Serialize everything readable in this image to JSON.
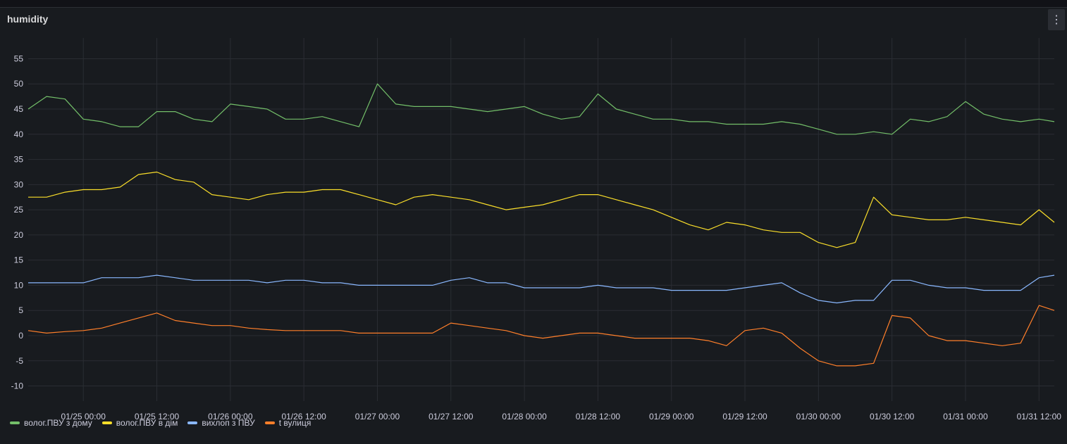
{
  "panel": {
    "title": "humidity",
    "menu_icon": "more-vertical-icon"
  },
  "chart_data": {
    "type": "line",
    "title": "humidity",
    "xlabel": "",
    "ylabel": "",
    "ylim": [
      -13,
      58
    ],
    "xlim": [
      "2025-01-24 15:00",
      "2025-01-31 14:30"
    ],
    "grid": true,
    "legend_position": "bottom-left",
    "y_ticks": [
      -10,
      -5,
      0,
      5,
      10,
      15,
      20,
      25,
      30,
      35,
      40,
      45,
      50,
      55
    ],
    "x_ticks": [
      {
        "t": "2025-01-25 00:00",
        "label": "01/25 00:00"
      },
      {
        "t": "2025-01-25 12:00",
        "label": "01/25 12:00"
      },
      {
        "t": "2025-01-26 00:00",
        "label": "01/26 00:00"
      },
      {
        "t": "2025-01-26 12:00",
        "label": "01/26 12:00"
      },
      {
        "t": "2025-01-27 00:00",
        "label": "01/27 00:00"
      },
      {
        "t": "2025-01-27 12:00",
        "label": "01/27 12:00"
      },
      {
        "t": "2025-01-28 00:00",
        "label": "01/28 00:00"
      },
      {
        "t": "2025-01-28 12:00",
        "label": "01/28 12:00"
      },
      {
        "t": "2025-01-29 00:00",
        "label": "01/29 00:00"
      },
      {
        "t": "2025-01-29 12:00",
        "label": "01/29 12:00"
      },
      {
        "t": "2025-01-30 00:00",
        "label": "01/30 00:00"
      },
      {
        "t": "2025-01-30 12:00",
        "label": "01/30 12:00"
      },
      {
        "t": "2025-01-31 00:00",
        "label": "01/31 00:00"
      },
      {
        "t": "2025-01-31 12:00",
        "label": "01/31 12:00"
      }
    ],
    "x": [
      "2025-01-24 15:00",
      "2025-01-24 18:00",
      "2025-01-24 21:00",
      "2025-01-25 00:00",
      "2025-01-25 03:00",
      "2025-01-25 06:00",
      "2025-01-25 09:00",
      "2025-01-25 12:00",
      "2025-01-25 15:00",
      "2025-01-25 18:00",
      "2025-01-25 21:00",
      "2025-01-26 00:00",
      "2025-01-26 03:00",
      "2025-01-26 06:00",
      "2025-01-26 09:00",
      "2025-01-26 12:00",
      "2025-01-26 15:00",
      "2025-01-26 18:00",
      "2025-01-26 21:00",
      "2025-01-27 00:00",
      "2025-01-27 03:00",
      "2025-01-27 06:00",
      "2025-01-27 09:00",
      "2025-01-27 12:00",
      "2025-01-27 15:00",
      "2025-01-27 18:00",
      "2025-01-27 21:00",
      "2025-01-28 00:00",
      "2025-01-28 03:00",
      "2025-01-28 06:00",
      "2025-01-28 09:00",
      "2025-01-28 12:00",
      "2025-01-28 15:00",
      "2025-01-28 18:00",
      "2025-01-28 21:00",
      "2025-01-29 00:00",
      "2025-01-29 03:00",
      "2025-01-29 06:00",
      "2025-01-29 09:00",
      "2025-01-29 12:00",
      "2025-01-29 15:00",
      "2025-01-29 18:00",
      "2025-01-29 21:00",
      "2025-01-30 00:00",
      "2025-01-30 03:00",
      "2025-01-30 06:00",
      "2025-01-30 09:00",
      "2025-01-30 12:00",
      "2025-01-30 15:00",
      "2025-01-30 18:00",
      "2025-01-30 21:00",
      "2025-01-31 00:00",
      "2025-01-31 03:00",
      "2025-01-31 06:00",
      "2025-01-31 09:00",
      "2025-01-31 12:00",
      "2025-01-31 14:30"
    ],
    "series": [
      {
        "name": "волог.ПВУ з дому",
        "color": "#73bf69",
        "values": [
          45,
          47.5,
          47,
          43,
          42.5,
          41.5,
          41.5,
          44.5,
          44.5,
          43,
          42.5,
          46,
          45.5,
          45,
          43,
          43,
          43.5,
          42.5,
          41.5,
          50,
          46,
          45.5,
          45.5,
          45.5,
          45,
          44.5,
          45,
          45.5,
          44,
          43,
          43.5,
          48,
          45,
          44,
          43,
          43,
          42.5,
          42.5,
          42,
          42,
          42,
          42.5,
          42,
          41,
          40,
          40,
          40.5,
          40,
          43,
          42.5,
          43.5,
          46.5,
          44,
          43,
          42.5,
          43,
          42.5
        ]
      },
      {
        "name": "волог.ПВУ в дім",
        "color": "#fade2a",
        "values": [
          27.5,
          27.5,
          28.5,
          29,
          29,
          29.5,
          32,
          32.5,
          31,
          30.5,
          28,
          27.5,
          27,
          28,
          28.5,
          28.5,
          29,
          29,
          28,
          27,
          26,
          27.5,
          28,
          27.5,
          27,
          26,
          25,
          25.5,
          26,
          27,
          28,
          28,
          27,
          26,
          25,
          23.5,
          22,
          21,
          22.5,
          22,
          21,
          20.5,
          20.5,
          18.5,
          17.5,
          18.5,
          27.5,
          24,
          23.5,
          23,
          23,
          23.5,
          23,
          22.5,
          22,
          25,
          22.5
        ]
      },
      {
        "name": "вихлоп з ПВУ",
        "color": "#8ab8ff",
        "values": [
          10.5,
          10.5,
          10.5,
          10.5,
          11.5,
          11.5,
          11.5,
          12,
          11.5,
          11,
          11,
          11,
          11,
          10.5,
          11,
          11,
          10.5,
          10.5,
          10,
          10,
          10,
          10,
          10,
          11,
          11.5,
          10.5,
          10.5,
          9.5,
          9.5,
          9.5,
          9.5,
          10,
          9.5,
          9.5,
          9.5,
          9,
          9,
          9,
          9,
          9.5,
          10,
          10.5,
          8.5,
          7,
          6.5,
          7,
          7,
          11,
          11,
          10,
          9.5,
          9.5,
          9,
          9,
          9,
          11.5,
          12
        ]
      },
      {
        "name": "t вулиця",
        "color": "#ff7f2a",
        "values": [
          1,
          0.5,
          0.8,
          1,
          1.5,
          2.5,
          3.5,
          4.5,
          3,
          2.5,
          2,
          2,
          1.5,
          1.2,
          1,
          1,
          1,
          1,
          0.5,
          0.5,
          0.5,
          0.5,
          0.5,
          2.5,
          2,
          1.5,
          1,
          0,
          -0.5,
          0,
          0.5,
          0.5,
          0,
          -0.5,
          -0.5,
          -0.5,
          -0.5,
          -1,
          -2,
          1,
          1.5,
          0.5,
          -2.5,
          -5,
          -6,
          -6,
          -5.5,
          4,
          3.5,
          0,
          -1,
          -1,
          -1.5,
          -2,
          -1.5,
          6,
          5
        ]
      }
    ]
  }
}
